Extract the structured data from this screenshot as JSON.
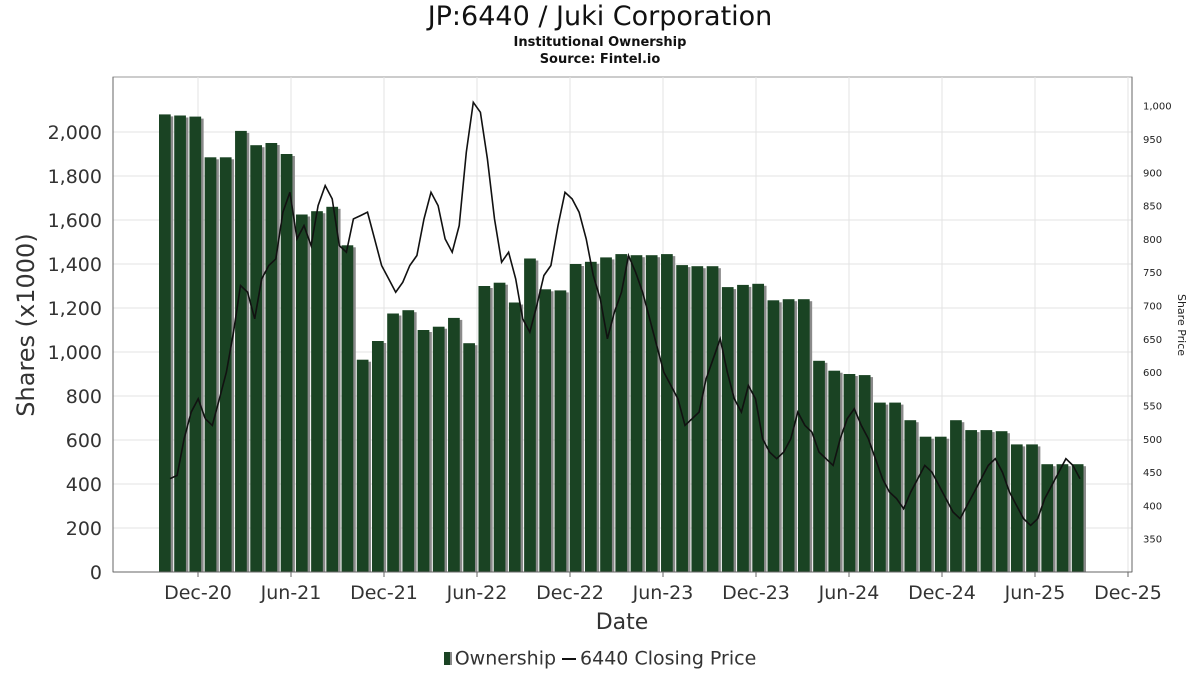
{
  "title": "JP:6440 / Juki Corporation",
  "subtitle": "Institutional Ownership",
  "source": "Source: Fintel.io",
  "colors": {
    "bar": "#1a4323",
    "bar_shadow": "#8a8a8a",
    "line": "#111111",
    "grid": "#e3e3e3"
  },
  "chart_data": {
    "type": "bar",
    "xlabel": "Date",
    "ylabel": "Shares (x1000)",
    "y2label": "Share Price",
    "ylim": [
      0,
      2250
    ],
    "y2lim": [
      300,
      1043
    ],
    "yticks": [
      "0",
      "200",
      "400",
      "600",
      "800",
      "1,000",
      "1,200",
      "1,400",
      "1,600",
      "1,800",
      "2,000"
    ],
    "y2ticks": [
      "350",
      "400",
      "450",
      "500",
      "550",
      "600",
      "650",
      "700",
      "750",
      "800",
      "850",
      "900",
      "950",
      "1,000"
    ],
    "xticks": [
      "Dec-20",
      "Jun-21",
      "Dec-21",
      "Jun-22",
      "Dec-22",
      "Jun-23",
      "Dec-23",
      "Jun-24",
      "Dec-24",
      "Jun-25",
      "Dec-25"
    ],
    "grid": true,
    "legend_position": "bottom",
    "series": [
      {
        "name": "Ownership",
        "type": "bar",
        "values": [
          2080,
          2075,
          2070,
          1885,
          1885,
          2005,
          1940,
          1950,
          1900,
          1625,
          1640,
          1660,
          1485,
          965,
          1050,
          1175,
          1190,
          1100,
          1115,
          1155,
          1040,
          1300,
          1315,
          1225,
          1425,
          1285,
          1280,
          1400,
          1410,
          1430,
          1445,
          1440,
          1440,
          1445,
          1395,
          1390,
          1390,
          1295,
          1305,
          1310,
          1235,
          1240,
          1240,
          960,
          915,
          900,
          895,
          770,
          770,
          690,
          615,
          615,
          690,
          645,
          645,
          640,
          580,
          580,
          490,
          490,
          490
        ]
      },
      {
        "name": "6440 Closing Price",
        "type": "line",
        "values": [
          440,
          445,
          500,
          540,
          560,
          530,
          520,
          560,
          600,
          660,
          730,
          720,
          680,
          740,
          760,
          770,
          840,
          870,
          800,
          820,
          790,
          850,
          880,
          860,
          790,
          780,
          830,
          835,
          840,
          800,
          760,
          740,
          720,
          735,
          760,
          775,
          830,
          870,
          850,
          800,
          780,
          820,
          930,
          1005,
          990,
          920,
          830,
          765,
          780,
          740,
          680,
          660,
          700,
          745,
          760,
          820,
          870,
          860,
          840,
          800,
          745,
          710,
          650,
          690,
          720,
          775,
          750,
          720,
          680,
          640,
          600,
          580,
          560,
          520,
          530,
          540,
          590,
          620,
          650,
          600,
          560,
          540,
          580,
          560,
          500,
          480,
          470,
          480,
          500,
          540,
          520,
          510,
          480,
          470,
          460,
          500,
          530,
          545,
          520,
          500,
          470,
          440,
          420,
          410,
          395,
          420,
          440,
          460,
          450,
          430,
          410,
          390,
          380,
          400,
          420,
          440,
          460,
          470,
          450,
          420,
          400,
          380,
          370,
          380,
          410,
          430,
          450,
          470,
          460,
          440
        ]
      }
    ]
  },
  "legend": {
    "ownership": "Ownership",
    "price": "6440 Closing Price"
  }
}
